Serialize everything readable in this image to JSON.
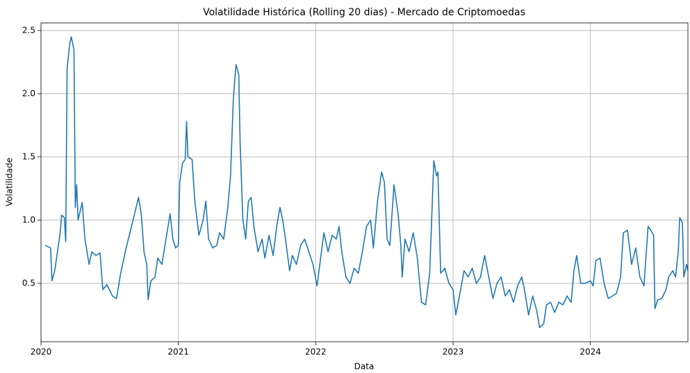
{
  "chart_data": {
    "type": "line",
    "title": "Volatilidade Histórica (Rolling 20 dias) - Mercado de Criptomoedas",
    "xlabel": "Data",
    "ylabel": "Volatilidade",
    "x": [
      2020.03,
      2020.07,
      2020.08,
      2020.1,
      2020.12,
      2020.14,
      2020.15,
      2020.17,
      2020.18,
      2020.19,
      2020.21,
      2020.22,
      2020.24,
      2020.25,
      2020.26,
      2020.27,
      2020.3,
      2020.32,
      2020.35,
      2020.37,
      2020.4,
      2020.43,
      2020.45,
      2020.48,
      2020.52,
      2020.55,
      2020.58,
      2020.62,
      2020.67,
      2020.71,
      2020.73,
      2020.75,
      2020.77,
      2020.78,
      2020.8,
      2020.83,
      2020.85,
      2020.88,
      2020.91,
      2020.94,
      2020.96,
      2020.98,
      2021.0,
      2021.01,
      2021.03,
      2021.05,
      2021.06,
      2021.07,
      2021.1,
      2021.12,
      2021.15,
      2021.18,
      2021.2,
      2021.22,
      2021.25,
      2021.28,
      2021.3,
      2021.33,
      2021.36,
      2021.38,
      2021.4,
      2021.41,
      2021.42,
      2021.44,
      2021.45,
      2021.47,
      2021.49,
      2021.51,
      2021.53,
      2021.55,
      2021.58,
      2021.61,
      2021.63,
      2021.66,
      2021.69,
      2021.72,
      2021.74,
      2021.76,
      2021.78,
      2021.81,
      2021.83,
      2021.86,
      2021.89,
      2021.92,
      2021.95,
      2021.98,
      2022.01,
      2022.03,
      2022.06,
      2022.09,
      2022.12,
      2022.15,
      2022.17,
      2022.19,
      2022.22,
      2022.25,
      2022.28,
      2022.31,
      2022.34,
      2022.37,
      2022.4,
      2022.42,
      2022.45,
      2022.48,
      2022.5,
      2022.52,
      2022.54,
      2022.57,
      2022.6,
      2022.62,
      2022.63,
      2022.65,
      2022.68,
      2022.71,
      2022.74,
      2022.77,
      2022.8,
      2022.83,
      2022.86,
      2022.88,
      2022.89,
      2022.91,
      2022.94,
      2022.97,
      2023.0,
      2023.02,
      2023.05,
      2023.08,
      2023.11,
      2023.14,
      2023.17,
      2023.2,
      2023.23,
      2023.26,
      2023.29,
      2023.32,
      2023.35,
      2023.38,
      2023.41,
      2023.44,
      2023.47,
      2023.5,
      2023.52,
      2023.55,
      2023.58,
      2023.61,
      2023.63,
      2023.66,
      2023.68,
      2023.71,
      2023.74,
      2023.77,
      2023.8,
      2023.83,
      2023.86,
      2023.88,
      2023.9,
      2023.93,
      2023.96,
      2024.0,
      2024.02,
      2024.04,
      2024.07,
      2024.1,
      2024.13,
      2024.16,
      2024.19,
      2024.22,
      2024.24,
      2024.27,
      2024.3,
      2024.33,
      2024.36,
      2024.39,
      2024.42,
      2024.44,
      2024.46,
      2024.47,
      2024.49,
      2024.52,
      2024.55,
      2024.57,
      2024.6,
      2024.62,
      2024.64,
      2024.65,
      2024.67,
      2024.68,
      2024.7,
      2024.71
    ],
    "series": [
      {
        "name": "Volatilidade",
        "color": "#1f77b4",
        "values": [
          0.8,
          0.78,
          0.52,
          0.6,
          0.75,
          0.9,
          1.04,
          1.02,
          0.83,
          2.2,
          2.4,
          2.45,
          2.35,
          1.1,
          1.28,
          1.0,
          1.14,
          0.85,
          0.65,
          0.75,
          0.72,
          0.74,
          0.45,
          0.49,
          0.4,
          0.38,
          0.58,
          0.78,
          1.0,
          1.18,
          1.05,
          0.75,
          0.65,
          0.37,
          0.52,
          0.55,
          0.7,
          0.65,
          0.85,
          1.05,
          0.85,
          0.78,
          0.8,
          1.3,
          1.45,
          1.48,
          1.78,
          1.5,
          1.48,
          1.15,
          0.88,
          1.0,
          1.15,
          0.85,
          0.78,
          0.8,
          0.9,
          0.85,
          1.1,
          1.35,
          1.95,
          2.1,
          2.23,
          2.15,
          1.6,
          1.0,
          0.85,
          1.15,
          1.18,
          0.95,
          0.75,
          0.85,
          0.7,
          0.88,
          0.72,
          0.98,
          1.1,
          1.0,
          0.85,
          0.6,
          0.72,
          0.65,
          0.8,
          0.85,
          0.75,
          0.65,
          0.48,
          0.65,
          0.9,
          0.75,
          0.88,
          0.85,
          0.95,
          0.75,
          0.55,
          0.5,
          0.62,
          0.58,
          0.75,
          0.95,
          1.0,
          0.78,
          1.15,
          1.38,
          1.3,
          0.85,
          0.8,
          1.28,
          1.05,
          0.8,
          0.55,
          0.85,
          0.75,
          0.9,
          0.7,
          0.35,
          0.33,
          0.58,
          1.47,
          1.35,
          1.38,
          0.58,
          0.62,
          0.5,
          0.45,
          0.25,
          0.42,
          0.6,
          0.55,
          0.62,
          0.5,
          0.55,
          0.72,
          0.55,
          0.38,
          0.5,
          0.55,
          0.4,
          0.45,
          0.35,
          0.48,
          0.55,
          0.45,
          0.25,
          0.4,
          0.28,
          0.15,
          0.18,
          0.33,
          0.35,
          0.27,
          0.35,
          0.33,
          0.4,
          0.35,
          0.6,
          0.72,
          0.5,
          0.5,
          0.52,
          0.48,
          0.68,
          0.7,
          0.5,
          0.38,
          0.4,
          0.42,
          0.55,
          0.9,
          0.92,
          0.65,
          0.78,
          0.55,
          0.48,
          0.95,
          0.92,
          0.88,
          0.3,
          0.37,
          0.38,
          0.45,
          0.55,
          0.6,
          0.55,
          0.75,
          1.02,
          0.98,
          0.55,
          0.65,
          0.6
        ]
      }
    ],
    "xlim": [
      2020.0,
      2024.71
    ],
    "xticks": [
      2020,
      2021,
      2022,
      2023,
      2024
    ],
    "ylim": [
      0.038,
      2.56
    ],
    "yticks": [
      {
        "value": 0.5,
        "label": "0.5"
      },
      {
        "value": 1.0,
        "label": "1.0"
      },
      {
        "value": 1.5,
        "label": "1.5"
      },
      {
        "value": 2.0,
        "label": "2.0"
      },
      {
        "value": 2.5,
        "label": "2.5"
      }
    ],
    "grid": true
  }
}
